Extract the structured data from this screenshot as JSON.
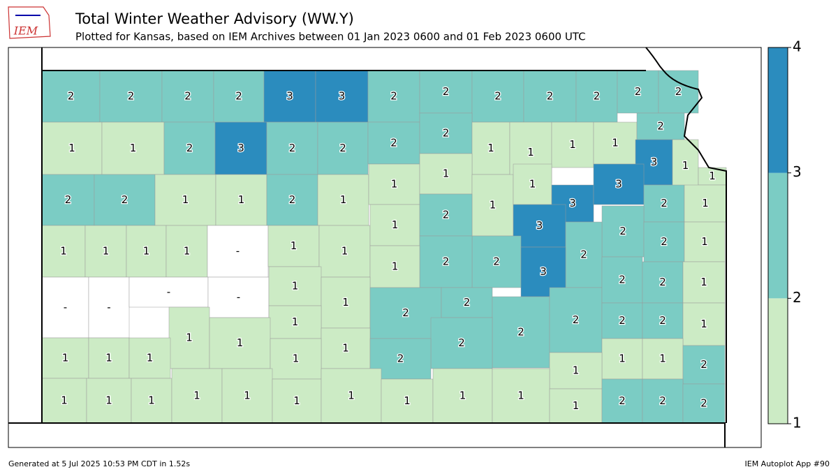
{
  "header": {
    "logo_text": "IEM",
    "title": "Total Winter Weather Advisory (WW.Y)",
    "subtitle": "Plotted for Kansas, based on IEM Archives  between 01 Jan 2023 0600 and 01 Feb 2023 0600 UTC"
  },
  "map": {
    "values": [
      2,
      2,
      2,
      2,
      3,
      3,
      2,
      2,
      2,
      2,
      2,
      2,
      2,
      1,
      1,
      2,
      3,
      2,
      2,
      2,
      2,
      1,
      1,
      1,
      1,
      2,
      3,
      1,
      1,
      2,
      2,
      1,
      1,
      2,
      1,
      1,
      1,
      1,
      1,
      3,
      3,
      2,
      1,
      1,
      1,
      1,
      1,
      null,
      1,
      1,
      1,
      2,
      3,
      2,
      2,
      1,
      2,
      2,
      2,
      1,
      3,
      null,
      null,
      null,
      null,
      1,
      1,
      2,
      2,
      2,
      2,
      2,
      2,
      1,
      1,
      1,
      1,
      1,
      2,
      2,
      2,
      2,
      1,
      1,
      1,
      1,
      1,
      1,
      1,
      2,
      1,
      1,
      1,
      1,
      1,
      1,
      1,
      1,
      1,
      1,
      1,
      1,
      2,
      2,
      2
    ],
    "missing_label": "-"
  },
  "legend": {
    "levels": [
      1,
      2,
      3,
      4
    ],
    "colors": [
      "#ccebc5",
      "#7bccc4",
      "#2b8cbe"
    ]
  },
  "footer": {
    "left": "Generated at 5 Jul 2025 10:53 PM CDT in 1.52s",
    "right": "IEM Autoplot App #90"
  }
}
